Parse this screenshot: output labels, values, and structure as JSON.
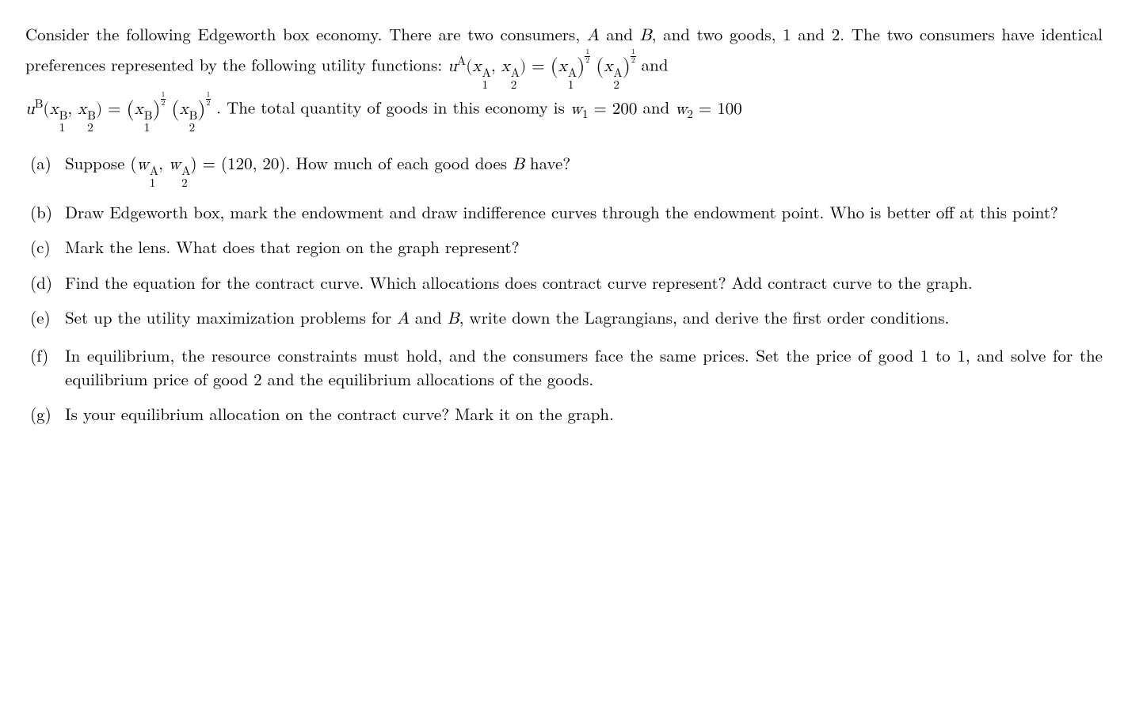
{
  "intro": {
    "line1_a": "Consider the following Edgeworth box economy. There are two consumers, ",
    "A": "A",
    "and1": " and ",
    "B": "B",
    "line1_b": ", and two goods, 1 and 2. The two consumers have identical preferences represented by the following utility functions: ",
    "eq1_lhs_u": "u",
    "eq1_lhs_sup": "A",
    "eq1_arg_x": "x",
    "eq1_arg1_sup": "A",
    "eq1_arg1_sub": "1",
    "eq1_arg2_sup": "A",
    "eq1_arg2_sub": "2",
    "eq": " = ",
    "pow_num": "1",
    "pow_den": "2",
    "and2": " and",
    "eq2_lhs_sup": "B",
    "eq2_arg1_sup": "B",
    "eq2_arg1_sub": "1",
    "eq2_arg2_sup": "B",
    "eq2_arg2_sub": "2",
    "tail1": ". The total quantity of goods in this economy is ",
    "w": "w",
    "w1_sub": "1",
    "w1_val": " = 200",
    "tail2": " and ",
    "w2_sub": "2",
    "w2_val": " = 100"
  },
  "parts": {
    "a": {
      "marker": "(a)",
      "t1": "Suppose (",
      "w": "w",
      "sup": "A",
      "sub1": "1",
      "sub2": "2",
      "t2": ") = (120, 20). How much of each good does ",
      "B": "B",
      "t3": " have?"
    },
    "b": {
      "marker": "(b)",
      "text": "Draw Edgeworth box, mark the endowment and draw indifference curves through the endowment point. Who is better off at this point?"
    },
    "c": {
      "marker": "(c)",
      "text": "Mark the lens. What does that region on the graph represent?"
    },
    "d": {
      "marker": "(d)",
      "text": "Find the equation for the contract curve. Which allocations does contract curve represent? Add contract curve to the graph."
    },
    "e": {
      "marker": "(e)",
      "t1": "Set up the utility maximization problems for ",
      "A": "A",
      "and": " and ",
      "B": "B",
      "t2": ", write down the La­grangians, and derive the first order conditions."
    },
    "f": {
      "marker": "(f)",
      "text": "In equilibrium, the resource constraints must hold, and the consumers face the same prices. Set the price of good 1 to 1, and solve for the equilibrium price of good 2 and the equilibrium allocations of the goods."
    },
    "g": {
      "marker": "(g)",
      "text": "Is your equilibrium allocation on the contract curve? Mark it on the graph."
    }
  }
}
